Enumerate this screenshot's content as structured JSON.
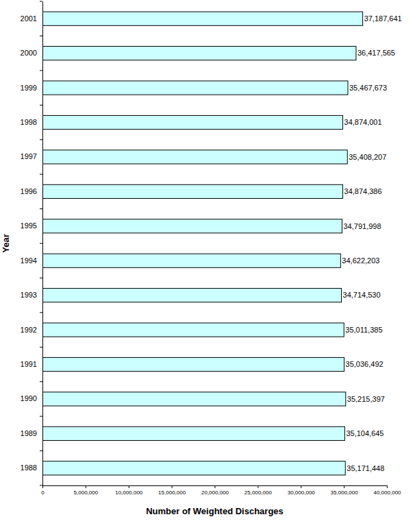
{
  "chart_data": {
    "type": "bar",
    "orientation": "horizontal",
    "x_label": "Number of Weighted Discharges",
    "y_label": "Year",
    "categories": [
      "2001",
      "2000",
      "1999",
      "1998",
      "1997",
      "1996",
      "1995",
      "1994",
      "1993",
      "1992",
      "1991",
      "1990",
      "1989",
      "1988"
    ],
    "values": [
      37187641,
      36417565,
      35467673,
      34874001,
      35408207,
      34874386,
      34791998,
      34622203,
      34714530,
      35011385,
      35036492,
      35215397,
      35104645,
      35171448
    ],
    "value_labels": [
      "37,187,641",
      "36,417,565",
      "35,467,673",
      "34,874,001",
      "35,408,207",
      "34,874,386",
      "34,791,998",
      "34,622,203",
      "34,714,530",
      "35,011,385",
      "35,036,492",
      "35,215,397",
      "35,104,645",
      "35,171,448"
    ],
    "data_labels": true,
    "color": "#ccffff",
    "xlim": [
      0,
      40000000
    ],
    "xticks": [
      0,
      {
        "value": 5000000,
        "label": "5,000,000"
      },
      {
        "value": 10000000,
        "label": "10,000,000"
      },
      {
        "value": 15000000,
        "label": "15,000,000"
      },
      {
        "value": 20000000,
        "label": "20,000,000"
      },
      {
        "value": 25000000,
        "label": "25,000,000"
      },
      {
        "value": 30000000,
        "label": "30,000,000"
      },
      {
        "value": 35000000,
        "label": "35,000,000"
      },
      {
        "value": 40000000,
        "label": "40,000,000"
      }
    ],
    "grid": false
  }
}
